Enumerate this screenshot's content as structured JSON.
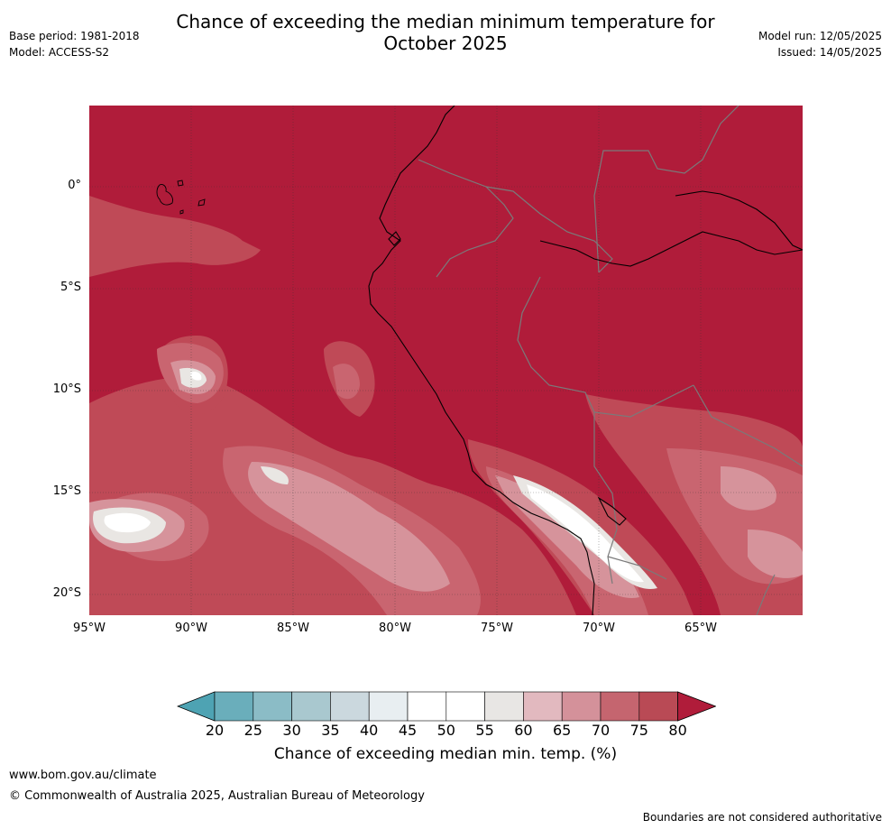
{
  "title": "Chance of exceeding the median minimum temperature for",
  "title_line2": "October 2025",
  "meta_left": {
    "base_period": "Base period: 1981-2018",
    "model": "Model: ACCESS-S2"
  },
  "meta_right": {
    "model_run": "Model run: 12/05/2025",
    "issued": "Issued: 14/05/2025"
  },
  "map": {
    "lat_labels": [
      "0°",
      "5°S",
      "10°S",
      "15°S",
      "20°S"
    ],
    "lon_labels": [
      "95°W",
      "90°W",
      "85°W",
      "80°W",
      "75°W",
      "70°W",
      "65°W"
    ],
    "background_color": "#b01c3a"
  },
  "colorbar": {
    "ticks": [
      "20",
      "25",
      "30",
      "35",
      "40",
      "45",
      "50",
      "55",
      "60",
      "65",
      "70",
      "75",
      "80"
    ],
    "colors": [
      "#4ea3b3",
      "#6aaebb",
      "#8bbcc6",
      "#a9c8cf",
      "#cbd8de",
      "#e8eef1",
      "#ffffff",
      "#ffffff",
      "#e8e6e4",
      "#e2b9bf",
      "#d4919a",
      "#c5656f",
      "#b94a55",
      "#b01c3a"
    ],
    "label": "Chance of exceeding median min. temp. (%)"
  },
  "footer": {
    "website": "www.bom.gov.au/climate",
    "copyright": "© Commonwealth of Australia 2025, Australian Bureau of Meteorology",
    "disclaimer": "Boundaries are not considered authoritative"
  }
}
